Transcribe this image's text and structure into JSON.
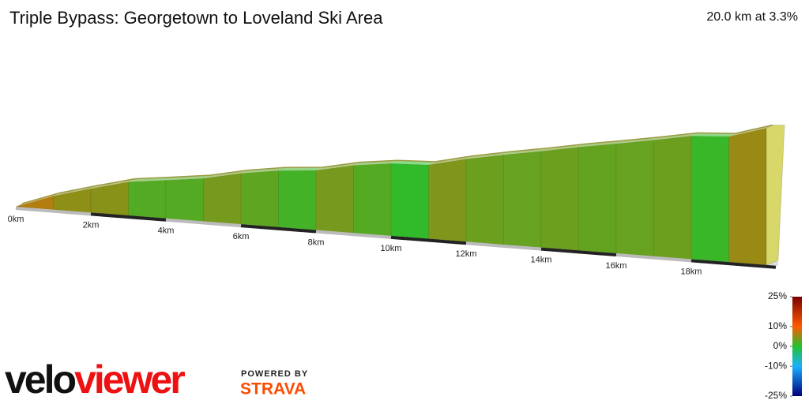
{
  "chart_data": {
    "type": "elevation-profile",
    "title": "Triple Bypass: Georgetown to Loveland Ski Area",
    "summary": "20.0 km at 3.3%",
    "x": [
      0,
      1,
      2,
      3,
      4,
      5,
      6,
      7,
      8,
      9,
      10,
      11,
      12,
      13,
      14,
      15,
      16,
      17,
      18,
      19,
      20
    ],
    "values": [
      2600,
      2665,
      2714,
      2760,
      2782,
      2805,
      2843,
      2870,
      2885,
      2923,
      2946,
      2953,
      2995,
      3029,
      3060,
      3094,
      3124,
      3155,
      3189,
      3200,
      3254
    ],
    "xlim": [
      0,
      20
    ],
    "xticks": [
      {
        "value": 0,
        "label": "0km"
      },
      {
        "value": 2,
        "label": "2km"
      },
      {
        "value": 4,
        "label": "4km"
      },
      {
        "value": 6,
        "label": "6km"
      },
      {
        "value": 8,
        "label": "8km"
      },
      {
        "value": 10,
        "label": "10km"
      },
      {
        "value": 12,
        "label": "12km"
      },
      {
        "value": 14,
        "label": "14km"
      },
      {
        "value": 16,
        "label": "16km"
      },
      {
        "value": 18,
        "label": "18km"
      }
    ],
    "colorbar_ticks": [
      {
        "value": 25,
        "label": "25%",
        "color": "#7a0000"
      },
      {
        "value": 10,
        "label": "10%",
        "color": "#ff5a00"
      },
      {
        "value": 0,
        "label": "0%",
        "color": "#22c22e"
      },
      {
        "value": -10,
        "label": "-10%",
        "color": "#1ab0ff"
      },
      {
        "value": -25,
        "label": "-25%",
        "color": "#00007a"
      }
    ]
  },
  "branding": {
    "velo": "velo",
    "viewer": "viewer",
    "powered_by": "POWERED BY",
    "strava": "STRAVA"
  }
}
